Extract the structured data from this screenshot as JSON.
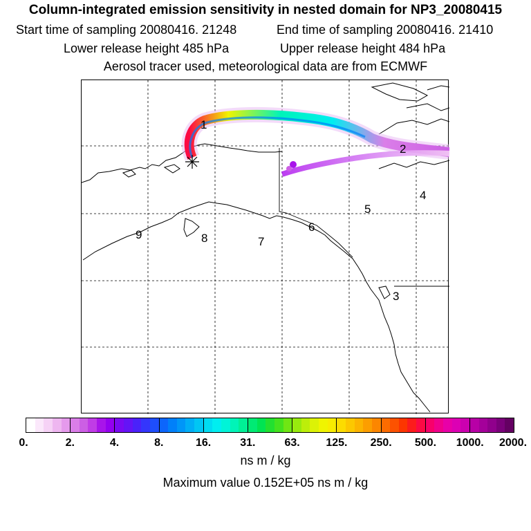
{
  "title": "Column-integrated emission sensitivity in nested domain for NP3_20080415",
  "header": {
    "start": "Start time of sampling 20080416. 21248",
    "end": "End time of sampling 20080416. 21410",
    "lower": "Lower release height  485 hPa",
    "upper": "Upper release height  484 hPa",
    "tracer": "Aerosol tracer used, meteorological data are from ECMWF"
  },
  "map": {
    "labels": [
      "1",
      "2",
      "3",
      "4",
      "5",
      "6",
      "7",
      "8",
      "9"
    ],
    "release_marker": "asterisk-release-point"
  },
  "colorbar": {
    "ticks": [
      "0.",
      "2.",
      "4.",
      "8.",
      "16.",
      "31.",
      "63.",
      "125.",
      "250.",
      "500.",
      "1000.",
      "2000."
    ],
    "colors": [
      "#ffffff",
      "#fbe8fb",
      "#f6d2f6",
      "#eeb6f0",
      "#e59aec",
      "#da7ee8",
      "#cc5fe4",
      "#c03ce6",
      "#a814ea",
      "#9400f0",
      "#7a0af2",
      "#6414f6",
      "#4a22fa",
      "#3436fc",
      "#1e4efc",
      "#0c66fc",
      "#0080fa",
      "#0096f8",
      "#00aef6",
      "#00c6f4",
      "#00dcf2",
      "#00eef0",
      "#00f4d8",
      "#00f4b8",
      "#00f096",
      "#00ea74",
      "#00e452",
      "#22e030",
      "#44e21e",
      "#70e614",
      "#98ea0e",
      "#bcee0a",
      "#dcf206",
      "#f0f400",
      "#f8ec00",
      "#fcdc00",
      "#fcc800",
      "#fcb400",
      "#fc9e00",
      "#fc8600",
      "#fc6c00",
      "#fc5200",
      "#fc3600",
      "#fc1c1c",
      "#fc0a44",
      "#f8006a",
      "#f0008c",
      "#e800a8",
      "#dc00b4",
      "#cc00b0",
      "#b800a6",
      "#a4009a",
      "#90008c",
      "#7a007a",
      "#640062",
      "#4e004c"
    ],
    "units": "ns m / kg",
    "maximum": "Maximum value  0.152E+05 ns m / kg"
  }
}
